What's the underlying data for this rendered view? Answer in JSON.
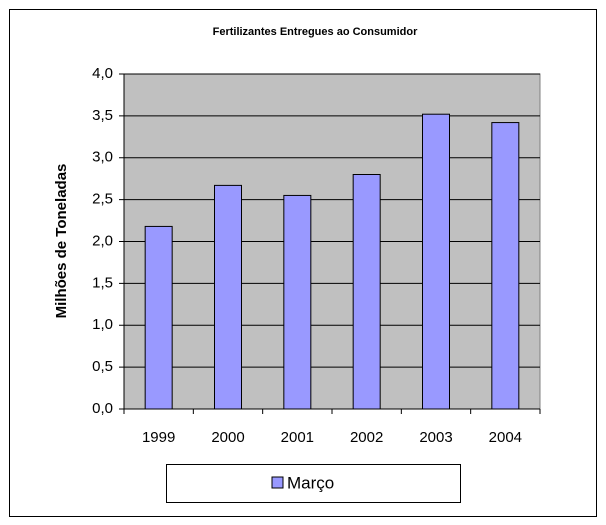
{
  "chart_data": {
    "type": "bar",
    "title": "Fertilizantes Entregues ao Consumidor",
    "y_label": "Milhões de Toneladas",
    "categories": [
      "1999",
      "2000",
      "2001",
      "2002",
      "2003",
      "2004"
    ],
    "series": [
      {
        "name": "Março",
        "color": "#9999ff",
        "values": [
          2.18,
          2.67,
          2.55,
          2.8,
          3.52,
          3.42
        ]
      }
    ],
    "ylim": [
      0,
      4
    ],
    "yticks": [
      {
        "value": 0,
        "label": "0,0"
      },
      {
        "value": 0.5,
        "label": "0,5"
      },
      {
        "value": 1,
        "label": "1,0"
      },
      {
        "value": 1.5,
        "label": "1,5"
      },
      {
        "value": 2,
        "label": "2,0"
      },
      {
        "value": 2.5,
        "label": "2,5"
      },
      {
        "value": 3,
        "label": "3,0"
      },
      {
        "value": 3.5,
        "label": "3,5"
      },
      {
        "value": 4,
        "label": "4,0"
      }
    ],
    "grid": true,
    "legend": "bottom"
  }
}
